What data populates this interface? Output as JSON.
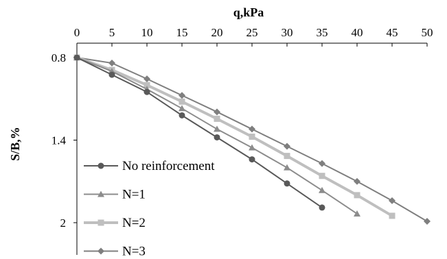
{
  "chart_data": {
    "type": "line",
    "title": "",
    "xlabel": "q,kPa",
    "ylabel": "S/B,%",
    "x_axis_position": "top",
    "y_axis_inverted": true,
    "xlim": [
      0,
      50
    ],
    "ylim": [
      0.8,
      2.2
    ],
    "x_ticks": [
      0,
      5,
      10,
      15,
      20,
      25,
      30,
      35,
      40,
      45,
      50
    ],
    "y_ticks": [
      0.8,
      1.4,
      2
    ],
    "x_tick_labels": [
      "0",
      "5",
      "10",
      "15",
      "20",
      "25",
      "30",
      "35",
      "40",
      "45",
      "50"
    ],
    "y_tick_labels": [
      "0.8",
      "1.4",
      "2"
    ],
    "grid": false,
    "legend_position": "bottom-left",
    "series": [
      {
        "name": "No reinforcement",
        "color": "#595959",
        "marker": "circle",
        "x": [
          0,
          5,
          10,
          15,
          20,
          25,
          30,
          35
        ],
        "y": [
          0.8,
          0.925,
          1.05,
          1.22,
          1.38,
          1.54,
          1.715,
          1.89
        ]
      },
      {
        "name": "N=1",
        "color": "#8c8c8c",
        "marker": "triangle",
        "x": [
          0,
          5,
          10,
          15,
          20,
          25,
          30,
          35,
          40
        ],
        "y": [
          0.8,
          0.9,
          1.03,
          1.17,
          1.32,
          1.455,
          1.6,
          1.765,
          1.935
        ]
      },
      {
        "name": "N=2",
        "color": "#bfbfbf",
        "marker": "square",
        "x": [
          0,
          5,
          10,
          15,
          20,
          25,
          30,
          35,
          40,
          45
        ],
        "y": [
          0.8,
          0.89,
          1.0,
          1.12,
          1.245,
          1.375,
          1.515,
          1.66,
          1.8,
          1.95
        ]
      },
      {
        "name": "N=3",
        "color": "#7f7f7f",
        "marker": "diamond",
        "x": [
          0,
          5,
          10,
          15,
          20,
          25,
          30,
          35,
          40,
          45,
          50
        ],
        "y": [
          0.8,
          0.84,
          0.955,
          1.075,
          1.195,
          1.32,
          1.445,
          1.57,
          1.7,
          1.84,
          1.99
        ]
      }
    ]
  }
}
